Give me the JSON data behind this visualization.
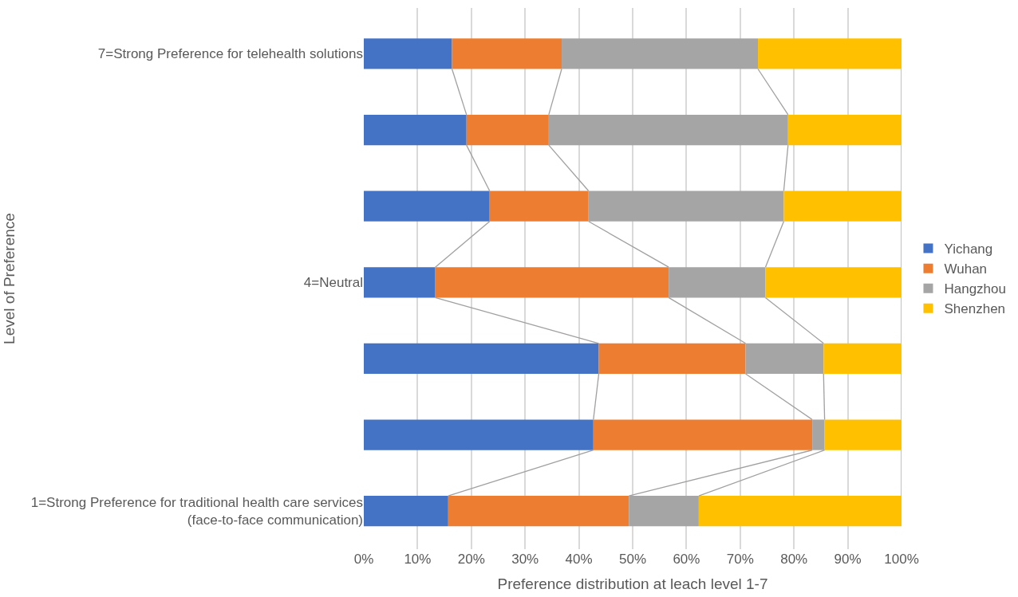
{
  "chart_data": {
    "type": "bar",
    "orientation": "horizontal",
    "stacked": true,
    "xlabel": "Preference distribution at leach level 1-7",
    "ylabel": "Level of Preference",
    "categories": [
      "7=Strong Preference for telehealth solutions",
      null,
      null,
      "4=Neutral",
      null,
      null,
      "1=Strong Preference for traditional health care services (face-to-face communication)"
    ],
    "series": [
      {
        "name": "Yichang",
        "color": "#4472c4",
        "values": [
          16.4,
          19.1,
          23.4,
          13.3,
          43.7,
          42.7,
          15.7
        ]
      },
      {
        "name": "Wuhan",
        "color": "#ed7d31",
        "values": [
          20.4,
          15.3,
          18.4,
          43.4,
          27.3,
          40.7,
          33.6
        ]
      },
      {
        "name": "Hangzhou",
        "color": "#a5a5a5",
        "values": [
          36.5,
          44.5,
          36.3,
          18.0,
          14.5,
          2.3,
          13.0
        ]
      },
      {
        "name": "Shenzhen",
        "color": "#ffc000",
        "values": [
          26.7,
          21.1,
          21.9,
          25.3,
          14.5,
          14.3,
          37.7
        ]
      }
    ],
    "xlim": [
      0,
      100
    ],
    "xticks": [
      {
        "value": 0,
        "label": "0%"
      },
      {
        "value": 10,
        "label": "10%"
      },
      {
        "value": 20,
        "label": "20%"
      },
      {
        "value": 30,
        "label": "30%"
      },
      {
        "value": 40,
        "label": "40%"
      },
      {
        "value": 50,
        "label": "50%"
      },
      {
        "value": 60,
        "label": "60%"
      },
      {
        "value": 70,
        "label": "70%"
      },
      {
        "value": 80,
        "label": "80%"
      },
      {
        "value": 90,
        "label": "90%"
      },
      {
        "value": 100,
        "label": "100%"
      }
    ],
    "grid": "x",
    "legend": "right"
  }
}
